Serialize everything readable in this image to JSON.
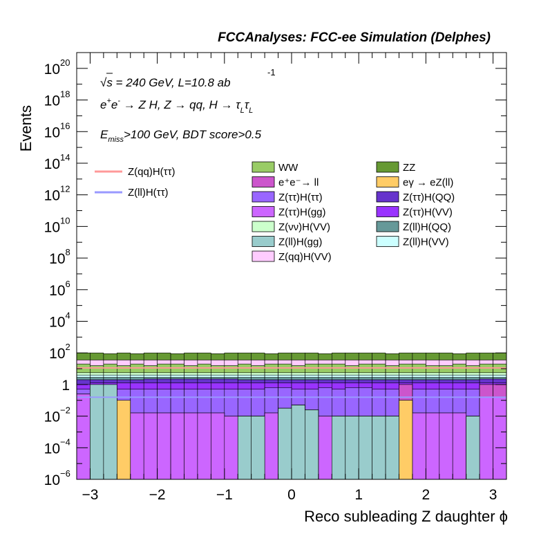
{
  "header": "FCCAnalyses: FCC-ee Simulation (Delphes)",
  "annotations": {
    "energy": "√s = 240 GeV, L=10.8 ab",
    "energy_sup": "-1",
    "process": "e⁺e⁻ → Z H, Z → qq, H → τ_L τ_L",
    "selection": "E_miss>100 GeV, BDT score>0.5"
  },
  "chart_data": {
    "type": "histogram",
    "title": "",
    "xlabel": "Reco subleading Z daughter ϕ",
    "ylabel": "Events",
    "xlim": [
      -3.2,
      3.2
    ],
    "ylim": [
      1e-06,
      1e+21
    ],
    "yscale": "log",
    "x_ticks": [
      -3,
      -2,
      -1,
      0,
      1,
      2,
      3
    ],
    "y_ticks_exp": [
      -6,
      -4,
      -2,
      0,
      2,
      4,
      6,
      8,
      10,
      12,
      14,
      16,
      18,
      20
    ],
    "y_tick_labels": [
      "10^-6",
      "10^-4",
      "10^-2",
      "1",
      "10^2",
      "10^4",
      "10^6",
      "10^8",
      "10^10",
      "10^12",
      "10^14",
      "10^16",
      "10^18",
      "10^20"
    ],
    "bin_edges": [
      -3.2,
      -3.0,
      -2.8,
      -2.6,
      -2.4,
      -2.2,
      -2.0,
      -1.8,
      -1.6,
      -1.4,
      -1.2,
      -1.0,
      -0.8,
      -0.6,
      -0.4,
      -0.2,
      0.0,
      0.2,
      0.4,
      0.6,
      0.8,
      1.0,
      1.2,
      1.4,
      1.6,
      1.8,
      2.0,
      2.2,
      2.4,
      2.6,
      2.8,
      3.0,
      3.2
    ],
    "stack_log10": [
      {
        "name": "Z(ll)H(gg)",
        "color": "#99cccc",
        "tops": [
          -6,
          0.0,
          0.0,
          -6,
          -6,
          -6,
          -6,
          -6,
          -6,
          -6,
          -6,
          -6,
          -2.0,
          -2.0,
          -6,
          -1.5,
          -1.3,
          -1.6,
          -6,
          -2.0,
          -2.0,
          -2.0,
          -2.0,
          -2.0,
          -6,
          -6,
          -6,
          -6,
          -6,
          -2.0,
          -6,
          -6
        ]
      },
      {
        "name": "eγ → eZ(ll)",
        "color": "#ffcc66",
        "tops": [
          -6,
          0.0,
          0.0,
          -1.0,
          -6,
          -6,
          -6,
          -6,
          -6,
          -6,
          -6,
          -6,
          -2.0,
          -2.0,
          -6,
          -1.5,
          -1.3,
          -1.6,
          -6,
          -2.0,
          -2.0,
          -2.0,
          -2.0,
          -2.0,
          -1.0,
          -6,
          -6,
          -6,
          -6,
          -2.0,
          -6,
          -6
        ]
      },
      {
        "name": "Z(ττ)H(gg)",
        "color": "#cc66ff",
        "tops": [
          -0.6,
          -1.5,
          -1.5,
          -1.5,
          -1.8,
          -1.8,
          -1.8,
          -1.8,
          -1.8,
          -1.8,
          -1.8,
          -2.0,
          -2.0,
          -2.0,
          -1.8,
          -1.5,
          -1.3,
          -1.6,
          -2.0,
          -2.0,
          -2.0,
          -2.0,
          -2.0,
          -2.0,
          -1.0,
          -1.8,
          -1.8,
          -1.8,
          -1.8,
          -2.0,
          -0.8,
          -0.8
        ]
      },
      {
        "name": "e⁺e⁻→ ll",
        "color": "#cc55cc",
        "tops": [
          -0.6,
          0.0,
          -1.5,
          -1.5,
          -1.8,
          -1.8,
          -1.8,
          -1.8,
          -1.8,
          -1.8,
          -1.8,
          -2.0,
          -2.0,
          -2.0,
          -1.8,
          -1.5,
          -1.3,
          -1.6,
          -2.0,
          -2.0,
          -2.0,
          -2.0,
          -2.0,
          -2.0,
          0.0,
          -1.8,
          -1.8,
          -1.8,
          -1.8,
          -2.0,
          0.0,
          0.0
        ]
      },
      {
        "name": "Z(ττ)H(ττ)",
        "color": "#9966ff",
        "tops": [
          -0.3,
          0.0,
          -0.3,
          -0.3,
          -0.3,
          -0.3,
          -0.3,
          -0.3,
          -0.3,
          -0.3,
          -0.3,
          -0.3,
          -0.3,
          -0.3,
          -0.2,
          -0.2,
          -0.3,
          -0.3,
          -0.2,
          -0.3,
          -0.2,
          -0.2,
          -0.3,
          -0.3,
          0.0,
          -0.3,
          -0.3,
          -0.3,
          -0.3,
          -0.3,
          0.0,
          0.0
        ]
      },
      {
        "name": "Z(ττ)H(VV)",
        "color": "#9933ff",
        "tops": [
          0.0,
          0.1,
          0.1,
          0.1,
          0.1,
          0.1,
          0.1,
          0.1,
          0.1,
          0.1,
          0.1,
          0.1,
          0.1,
          0.1,
          0.1,
          0.1,
          0.1,
          0.1,
          0.1,
          0.1,
          0.1,
          0.1,
          0.1,
          0.1,
          0.1,
          0.1,
          0.1,
          0.1,
          0.1,
          0.1,
          0.1,
          0.1
        ]
      },
      {
        "name": "Z(ττ)H(QQ)",
        "color": "#6633cc",
        "tops": [
          0.3,
          0.3,
          0.3,
          0.3,
          0.3,
          0.35,
          0.35,
          0.35,
          0.35,
          0.35,
          0.35,
          0.35,
          0.3,
          0.3,
          0.3,
          0.3,
          0.3,
          0.3,
          0.3,
          0.3,
          0.3,
          0.3,
          0.3,
          0.3,
          0.3,
          0.3,
          0.3,
          0.3,
          0.3,
          0.3,
          0.35,
          0.35
        ]
      },
      {
        "name": "Z(ll)H(QQ)",
        "color": "#669999",
        "tops": [
          0.45,
          0.45,
          0.45,
          0.45,
          0.45,
          0.45,
          0.45,
          0.45,
          0.45,
          0.45,
          0.45,
          0.45,
          0.45,
          0.45,
          0.45,
          0.45,
          0.45,
          0.45,
          0.45,
          0.45,
          0.45,
          0.45,
          0.45,
          0.45,
          0.45,
          0.45,
          0.45,
          0.45,
          0.45,
          0.45,
          0.45,
          0.45
        ]
      },
      {
        "name": "Z(ll)H(VV)",
        "color": "#ccffff",
        "tops": [
          0.6,
          0.6,
          0.6,
          0.6,
          0.6,
          0.6,
          0.6,
          0.6,
          0.6,
          0.6,
          0.6,
          0.6,
          0.6,
          0.6,
          0.6,
          0.6,
          0.6,
          0.6,
          0.6,
          0.6,
          0.6,
          0.6,
          0.6,
          0.6,
          0.6,
          0.6,
          0.6,
          0.6,
          0.6,
          0.6,
          0.6,
          0.6
        ]
      },
      {
        "name": "Z(νν)H(VV)",
        "color": "#ccffcc",
        "tops": [
          0.75,
          0.75,
          0.75,
          0.75,
          0.75,
          0.75,
          0.75,
          0.75,
          0.75,
          0.75,
          0.75,
          0.75,
          0.75,
          0.75,
          0.75,
          0.75,
          0.75,
          0.75,
          0.75,
          0.75,
          0.75,
          0.75,
          0.75,
          0.75,
          0.75,
          0.75,
          0.75,
          0.75,
          0.75,
          0.75,
          0.75,
          0.75
        ]
      },
      {
        "name": "WW",
        "color": "#99cc66",
        "tops": [
          1.3,
          1.2,
          1.3,
          1.2,
          1.3,
          1.2,
          1.3,
          1.3,
          1.2,
          1.3,
          1.2,
          1.2,
          1.3,
          1.2,
          1.3,
          1.3,
          1.2,
          1.3,
          1.3,
          1.3,
          1.2,
          1.3,
          1.3,
          1.2,
          1.3,
          1.3,
          1.2,
          1.2,
          1.3,
          1.2,
          1.3,
          1.3
        ]
      },
      {
        "name": "Z(qq)H(VV)",
        "color": "#ffccff",
        "tops": [
          1.55,
          1.55,
          1.55,
          1.55,
          1.55,
          1.55,
          1.55,
          1.55,
          1.55,
          1.55,
          1.55,
          1.55,
          1.55,
          1.55,
          1.55,
          1.55,
          1.55,
          1.55,
          1.55,
          1.55,
          1.55,
          1.55,
          1.55,
          1.55,
          1.55,
          1.55,
          1.55,
          1.55,
          1.55,
          1.55,
          1.55,
          1.55
        ]
      },
      {
        "name": "ZZ",
        "color": "#669933",
        "tops": [
          2.0,
          2.0,
          1.95,
          2.0,
          1.95,
          2.0,
          2.0,
          1.95,
          2.0,
          2.0,
          1.95,
          2.0,
          2.0,
          2.0,
          1.95,
          2.0,
          2.0,
          2.0,
          1.95,
          2.0,
          2.0,
          2.0,
          2.0,
          1.95,
          2.0,
          2.0,
          2.0,
          2.0,
          1.95,
          2.0,
          2.0,
          2.0
        ]
      }
    ],
    "signal_lines": [
      {
        "name": "Z(qq)H(ττ)",
        "color": "#ff9999",
        "value_log10": 1.05
      },
      {
        "name": "Z(ll)H(ττ)",
        "color": "#9999ff",
        "value_log10": -0.8
      }
    ],
    "legend": {
      "signals": [
        {
          "name": "Z(qq)H(ττ)",
          "color": "#ff9999"
        },
        {
          "name": "Z(ll)H(ττ)",
          "color": "#9999ff"
        }
      ],
      "col1": [
        {
          "name": "WW",
          "color": "#99cc66"
        },
        {
          "name": "e⁺e⁻→ ll",
          "color": "#cc55cc"
        },
        {
          "name": "Z(ττ)H(ττ)",
          "color": "#9966ff"
        },
        {
          "name": "Z(ττ)H(gg)",
          "color": "#cc66ff"
        },
        {
          "name": "Z(νν)H(VV)",
          "color": "#ccffcc"
        },
        {
          "name": "Z(ll)H(gg)",
          "color": "#99cccc"
        },
        {
          "name": "Z(qq)H(VV)",
          "color": "#ffccff"
        }
      ],
      "col2": [
        {
          "name": "ZZ",
          "color": "#669933"
        },
        {
          "name": "eγ → eZ(ll)",
          "color": "#ffcc66"
        },
        {
          "name": "Z(ττ)H(QQ)",
          "color": "#6633cc"
        },
        {
          "name": "Z(ττ)H(VV)",
          "color": "#9933ff"
        },
        {
          "name": "Z(ll)H(QQ)",
          "color": "#669999"
        },
        {
          "name": "Z(ll)H(VV)",
          "color": "#ccffff"
        }
      ]
    }
  }
}
